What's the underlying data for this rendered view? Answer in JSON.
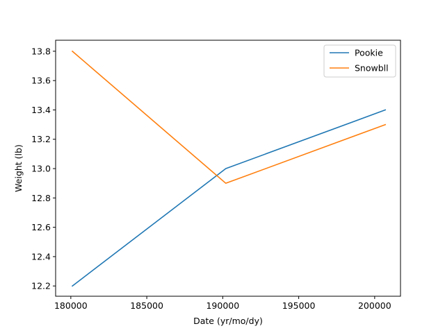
{
  "chart_data": {
    "type": "line",
    "title": "",
    "xlabel": "Date (yr/mo/dy)",
    "ylabel": "Weight (lb)",
    "xlim": [
      179000,
      201700
    ],
    "ylim": [
      12.13,
      13.875
    ],
    "xticks": [
      180000,
      185000,
      190000,
      195000,
      200000
    ],
    "xtick_labels": [
      "180000",
      "185000",
      "190000",
      "195000",
      "200000"
    ],
    "yticks": [
      12.2,
      12.4,
      12.6,
      12.8,
      13.0,
      13.2,
      13.4,
      13.6,
      13.8
    ],
    "ytick_labels": [
      "12.2",
      "12.4",
      "12.6",
      "12.8",
      "13.0",
      "13.2",
      "13.4",
      "13.6",
      "13.8"
    ],
    "grid": false,
    "legend_position": "top-right",
    "series": [
      {
        "name": "Pookie",
        "color": "#1f77b4",
        "x": [
          180101,
          190201,
          200701
        ],
        "y": [
          12.2,
          13.0,
          13.4
        ]
      },
      {
        "name": "Snowbll",
        "color": "#ff7f0e",
        "x": [
          180101,
          190201,
          200701
        ],
        "y": [
          13.8,
          12.9,
          13.3
        ]
      }
    ]
  }
}
